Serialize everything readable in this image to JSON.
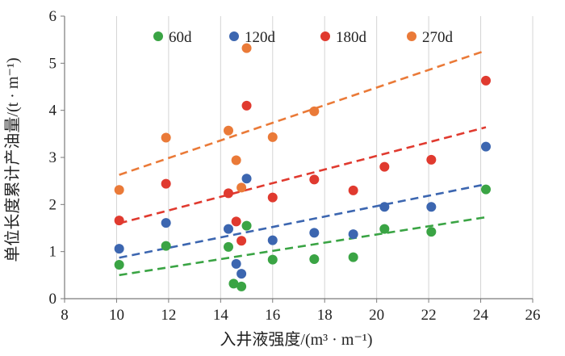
{
  "chart_data": {
    "type": "scatter",
    "xlabel": "入井液强度/(m³ · m⁻¹)",
    "ylabel": "单位长度累计产油量/(t · m⁻¹)",
    "xlim": [
      8,
      26
    ],
    "ylim": [
      0,
      6
    ],
    "xticks": [
      8,
      10,
      12,
      14,
      16,
      18,
      20,
      22,
      24,
      26
    ],
    "yticks": [
      0,
      1,
      2,
      3,
      4,
      5,
      6
    ],
    "x_tick_labels": [
      "8",
      "10",
      "12",
      "14",
      "16",
      "18",
      "20",
      "22",
      "24",
      "26"
    ],
    "y_tick_labels": [
      "0",
      "1",
      "2",
      "3",
      "4",
      "5",
      "6"
    ],
    "grid": "vertical",
    "legend_position": "top",
    "series": [
      {
        "name": "60d",
        "color": "#3aa444",
        "points": [
          [
            10.1,
            0.72
          ],
          [
            11.9,
            1.12
          ],
          [
            14.3,
            1.1
          ],
          [
            14.5,
            0.32
          ],
          [
            14.8,
            0.26
          ],
          [
            15,
            1.55
          ],
          [
            16,
            0.83
          ],
          [
            17.6,
            0.84
          ],
          [
            19.1,
            0.88
          ],
          [
            20.3,
            1.48
          ],
          [
            22.1,
            1.42
          ],
          [
            24.2,
            2.32
          ]
        ],
        "trend": [
          [
            10.1,
            0.5
          ],
          [
            24.2,
            1.73
          ]
        ]
      },
      {
        "name": "120d",
        "color": "#3c66b0",
        "points": [
          [
            10.1,
            1.06
          ],
          [
            11.9,
            1.61
          ],
          [
            14.3,
            1.48
          ],
          [
            14.6,
            0.74
          ],
          [
            14.8,
            0.53
          ],
          [
            15,
            2.55
          ],
          [
            16,
            1.24
          ],
          [
            17.6,
            1.4
          ],
          [
            19.1,
            1.37
          ],
          [
            20.3,
            1.95
          ],
          [
            22.1,
            1.95
          ],
          [
            24.2,
            3.23
          ]
        ],
        "trend": [
          [
            10.1,
            0.87
          ],
          [
            24.2,
            2.43
          ]
        ]
      },
      {
        "name": "180d",
        "color": "#e03a2f",
        "points": [
          [
            10.1,
            1.66
          ],
          [
            11.9,
            2.44
          ],
          [
            14.3,
            2.24
          ],
          [
            14.6,
            1.64
          ],
          [
            14.8,
            1.23
          ],
          [
            15,
            4.1
          ],
          [
            16,
            2.15
          ],
          [
            17.6,
            2.53
          ],
          [
            19.1,
            2.3
          ],
          [
            20.3,
            2.8
          ],
          [
            22.1,
            2.95
          ],
          [
            24.2,
            4.63
          ]
        ],
        "trend": [
          [
            10.1,
            1.6
          ],
          [
            24.2,
            3.64
          ]
        ]
      },
      {
        "name": "270d",
        "color": "#ea7a38",
        "points": [
          [
            10.1,
            2.31
          ],
          [
            11.9,
            3.42
          ],
          [
            14.3,
            3.57
          ],
          [
            14.6,
            2.94
          ],
          [
            14.8,
            2.36
          ],
          [
            15,
            5.32
          ],
          [
            16,
            3.43
          ],
          [
            17.6,
            3.98
          ]
        ],
        "trend": [
          [
            10.1,
            2.63
          ],
          [
            24.2,
            5.27
          ]
        ]
      }
    ]
  }
}
